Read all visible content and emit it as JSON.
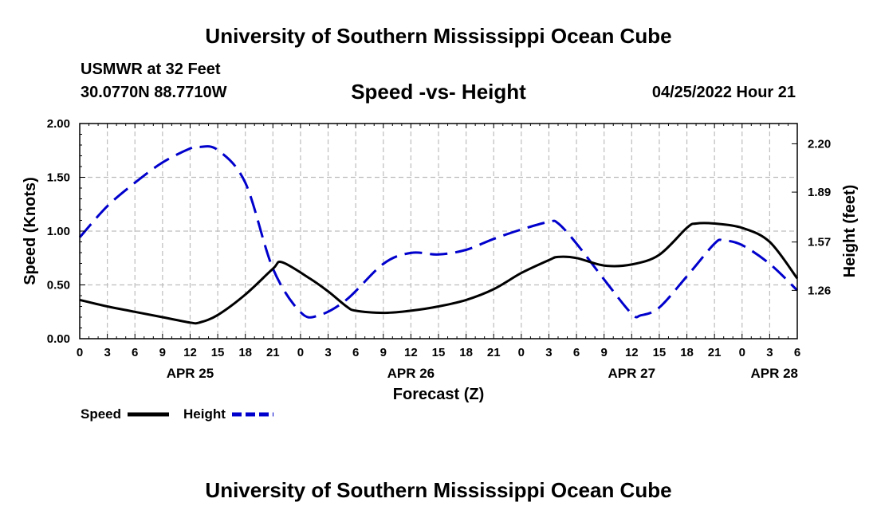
{
  "header": {
    "title": "University of Southern Mississippi Ocean Cube",
    "station": "USMWR at 32 Feet",
    "coords": "30.0770N  88.7710W",
    "subtitle": "Speed -vs- Height",
    "datetime": "04/25/2022 Hour 21"
  },
  "footer": {
    "title": "University of Southern Mississippi Ocean Cube"
  },
  "chart_data": {
    "type": "line",
    "title": "Speed -vs- Height",
    "xlabel": "Forecast (Z)",
    "ylabel": "Speed (Knots)",
    "ylabel_right": "Height (feet)",
    "grid": true,
    "x_range_hours": [
      0,
      78
    ],
    "x_ticks": [
      {
        "h": 0,
        "label": "0"
      },
      {
        "h": 3,
        "label": "3"
      },
      {
        "h": 6,
        "label": "6"
      },
      {
        "h": 9,
        "label": "9"
      },
      {
        "h": 12,
        "label": "12"
      },
      {
        "h": 15,
        "label": "15"
      },
      {
        "h": 18,
        "label": "18"
      },
      {
        "h": 21,
        "label": "21"
      },
      {
        "h": 24,
        "label": "0"
      },
      {
        "h": 27,
        "label": "3"
      },
      {
        "h": 30,
        "label": "6"
      },
      {
        "h": 33,
        "label": "9"
      },
      {
        "h": 36,
        "label": "12"
      },
      {
        "h": 39,
        "label": "15"
      },
      {
        "h": 42,
        "label": "18"
      },
      {
        "h": 45,
        "label": "21"
      },
      {
        "h": 48,
        "label": "0"
      },
      {
        "h": 51,
        "label": "3"
      },
      {
        "h": 54,
        "label": "6"
      },
      {
        "h": 57,
        "label": "9"
      },
      {
        "h": 60,
        "label": "12"
      },
      {
        "h": 63,
        "label": "15"
      },
      {
        "h": 66,
        "label": "18"
      },
      {
        "h": 69,
        "label": "21"
      },
      {
        "h": 72,
        "label": "0"
      },
      {
        "h": 75,
        "label": "3"
      },
      {
        "h": 78,
        "label": "6"
      }
    ],
    "date_labels": [
      {
        "h": 12,
        "label": "APR 25"
      },
      {
        "h": 36,
        "label": "APR 26"
      },
      {
        "h": 60,
        "label": "APR 27"
      },
      {
        "h": 78,
        "label": "APR 28"
      }
    ],
    "y_left": {
      "min": 0,
      "max": 2,
      "ticks": [
        "0.00",
        "0.50",
        "1.00",
        "1.50",
        "2.00"
      ],
      "tick_values": [
        0,
        0.5,
        1,
        1.5,
        2
      ]
    },
    "y_right": {
      "min": 0.95,
      "max": 2.33,
      "ticks": [
        "1.26",
        "1.57",
        "1.89",
        "2.20"
      ],
      "tick_values": [
        1.26,
        1.57,
        1.89,
        2.2
      ]
    },
    "series": [
      {
        "name": "Speed",
        "color": "#000000",
        "dash": "solid",
        "axis": "left",
        "x": [
          0,
          3,
          6,
          9,
          12,
          13,
          15,
          18,
          21,
          22,
          25,
          27,
          29,
          30,
          33,
          36,
          39,
          42,
          45,
          48,
          51,
          52,
          54,
          57,
          60,
          63,
          66,
          67,
          69,
          72,
          75,
          78
        ],
        "values": [
          0.36,
          0.3,
          0.25,
          0.2,
          0.15,
          0.15,
          0.22,
          0.41,
          0.65,
          0.71,
          0.56,
          0.44,
          0.3,
          0.26,
          0.24,
          0.26,
          0.3,
          0.36,
          0.46,
          0.61,
          0.73,
          0.76,
          0.75,
          0.68,
          0.69,
          0.78,
          1.03,
          1.07,
          1.07,
          1.03,
          0.9,
          0.56
        ]
      },
      {
        "name": "Height",
        "color": "#0000cc",
        "dash": "dashed",
        "axis": "right",
        "x": [
          0,
          3,
          6,
          9,
          12,
          13,
          15,
          18,
          21,
          24,
          26,
          29,
          33,
          36,
          39,
          42,
          45,
          48,
          51,
          52,
          54,
          57,
          60,
          61,
          63,
          66,
          69,
          70,
          72,
          75,
          78
        ],
        "values": [
          1.6,
          1.8,
          1.95,
          2.08,
          2.17,
          2.18,
          2.16,
          1.95,
          1.4,
          1.12,
          1.1,
          1.2,
          1.43,
          1.5,
          1.49,
          1.52,
          1.59,
          1.65,
          1.7,
          1.69,
          1.56,
          1.33,
          1.11,
          1.1,
          1.15,
          1.35,
          1.56,
          1.58,
          1.55,
          1.43,
          1.26
        ]
      }
    ],
    "legend": [
      {
        "label": "Speed",
        "color": "#000000",
        "dash": "solid"
      },
      {
        "label": "Height",
        "color": "#0000cc",
        "dash": "dashed"
      }
    ],
    "legend_position": "bottom-left"
  }
}
